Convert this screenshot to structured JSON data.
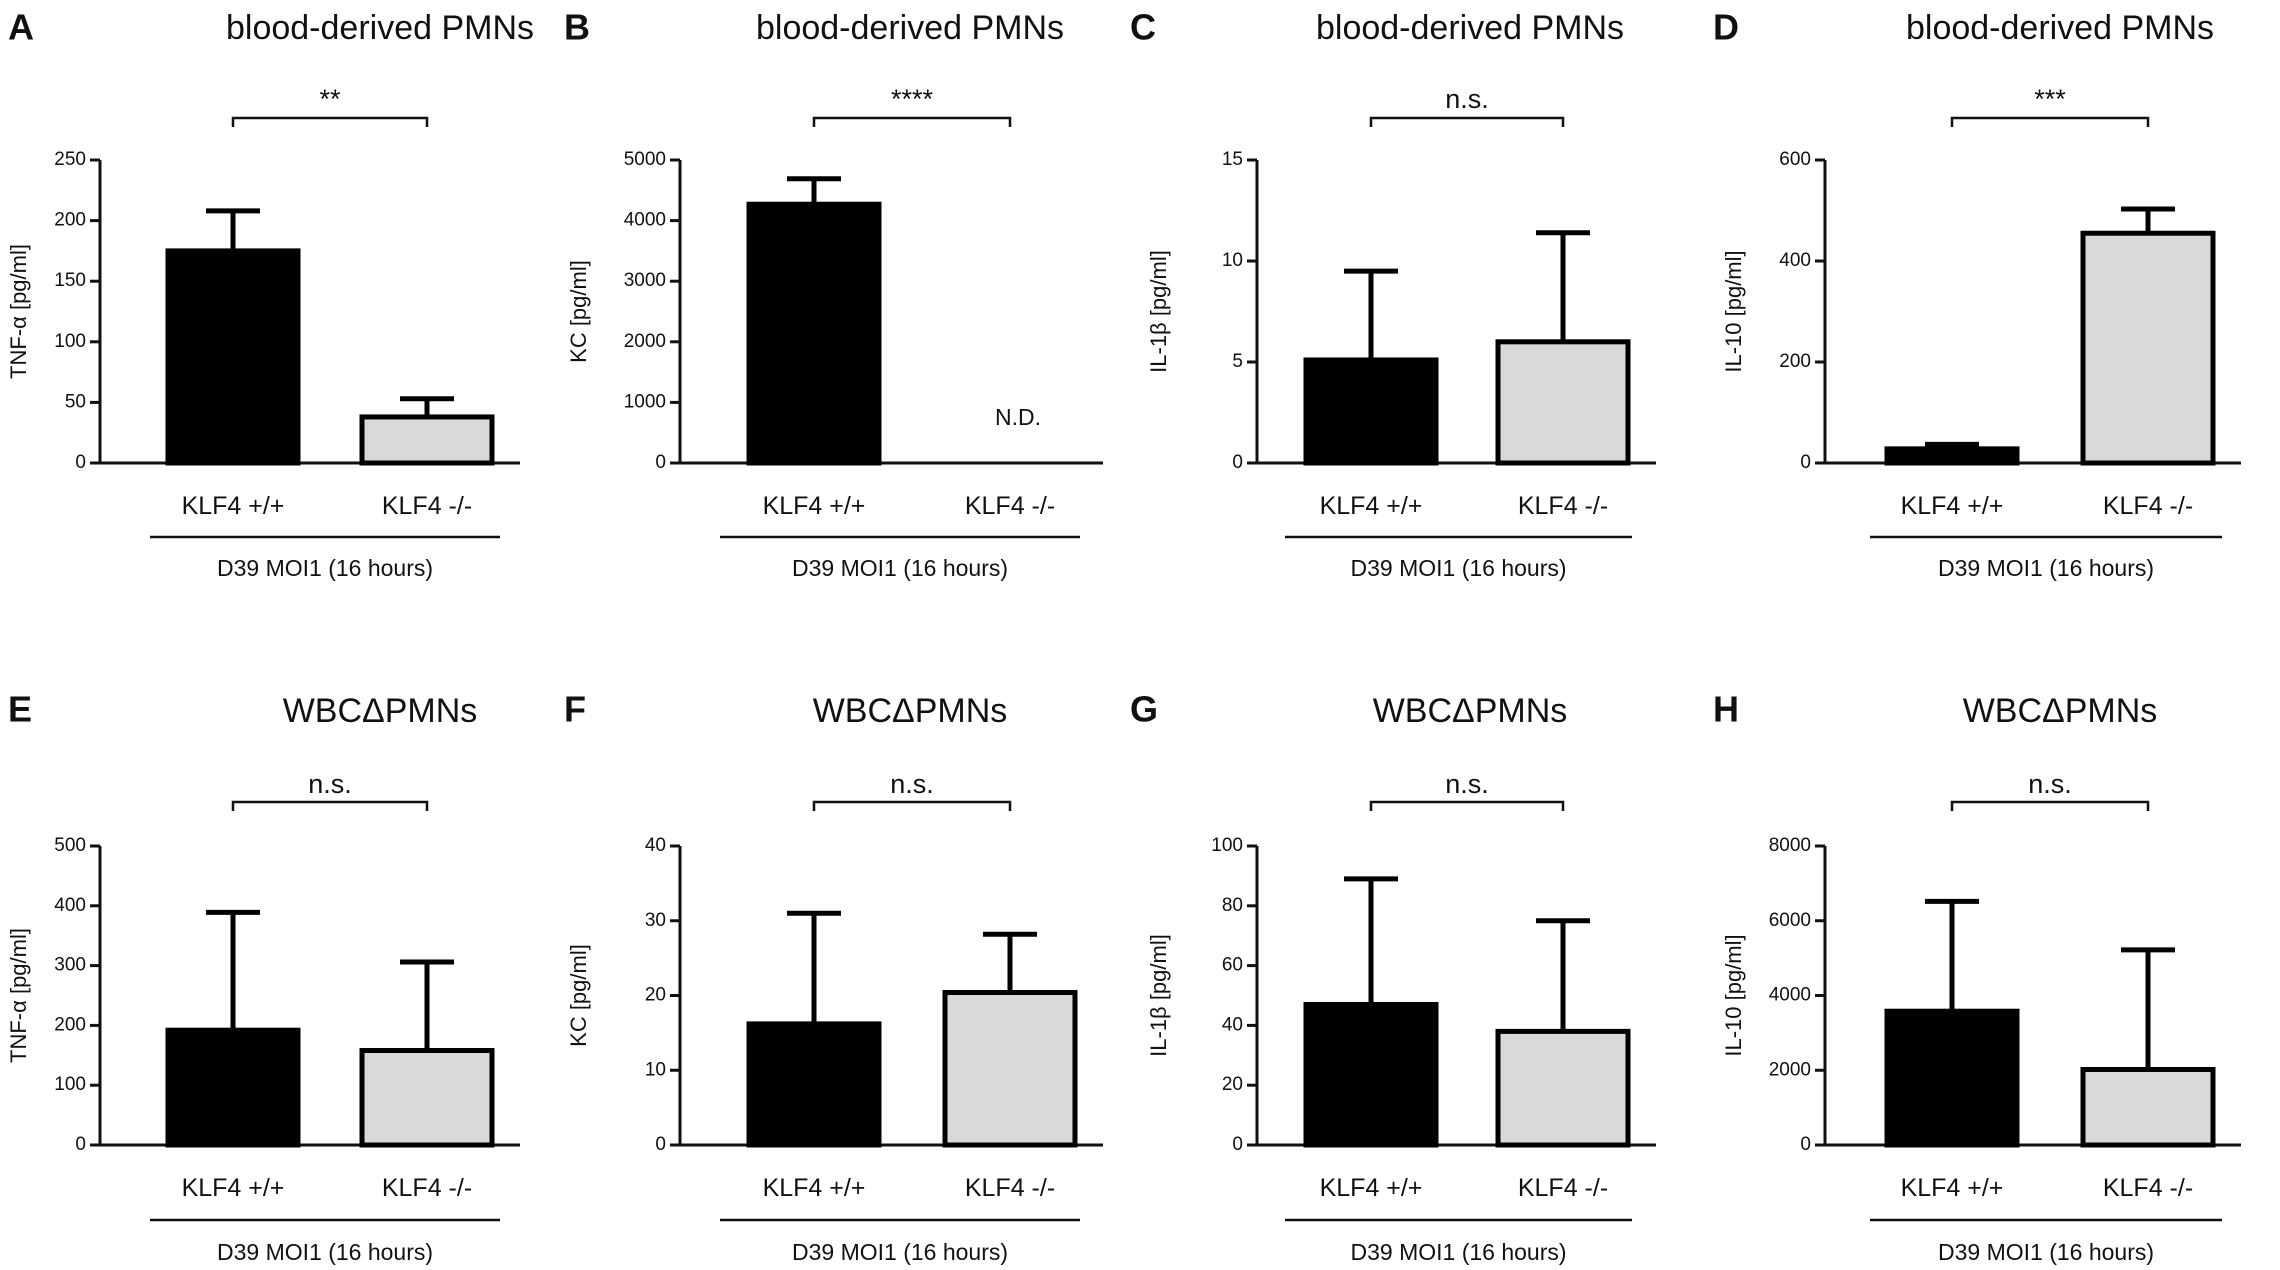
{
  "figure": {
    "group_label": "D39 MOI1 (16 hours)"
  },
  "chart_data": [
    {
      "panel": "A",
      "type": "bar",
      "title": "blood-derived PMNs",
      "ylabel": "TNF-α  [pg/ml]",
      "ylim": [
        0,
        250
      ],
      "yticks": [
        0,
        50,
        100,
        150,
        200,
        250
      ],
      "categories": [
        "KLF4 +/+",
        "KLF4 -/-"
      ],
      "values": [
        175,
        38
      ],
      "errors": [
        33,
        15
      ],
      "significance": "**",
      "annotation": null,
      "group_label": "D39 MOI1 (16 hours)"
    },
    {
      "panel": "B",
      "type": "bar",
      "title": "blood-derived PMNs",
      "ylabel": "KC [pg/ml]",
      "ylim": [
        0,
        5000
      ],
      "yticks": [
        0,
        1000,
        2000,
        3000,
        4000,
        5000
      ],
      "categories": [
        "KLF4 +/+",
        "KLF4 -/-"
      ],
      "values": [
        4270,
        null
      ],
      "errors": [
        420,
        null
      ],
      "significance": "****",
      "annotation": "N.D.",
      "group_label": "D39 MOI1 (16 hours)"
    },
    {
      "panel": "C",
      "type": "bar",
      "title": "blood-derived PMNs",
      "ylabel": "IL-1β [pg/ml]",
      "ylim": [
        0,
        15
      ],
      "yticks": [
        0,
        5,
        10,
        15
      ],
      "categories": [
        "KLF4 +/+",
        "KLF4 -/-"
      ],
      "values": [
        5.1,
        6.0
      ],
      "errors": [
        4.4,
        5.4
      ],
      "significance": "n.s.",
      "annotation": null,
      "group_label": "D39 MOI1 (16 hours)"
    },
    {
      "panel": "D",
      "type": "bar",
      "title": "blood-derived PMNs",
      "ylabel": "IL-10 [pg/ml]",
      "ylim": [
        0,
        600
      ],
      "yticks": [
        0,
        200,
        400,
        600
      ],
      "categories": [
        "KLF4 +/+",
        "KLF4 -/-"
      ],
      "values": [
        28,
        455
      ],
      "errors": [
        9,
        48
      ],
      "significance": "***",
      "annotation": null,
      "group_label": "D39 MOI1 (16 hours)"
    },
    {
      "panel": "E",
      "type": "bar",
      "title": "WBCΔPMNs",
      "ylabel": "TNF-α  [pg/ml]",
      "ylim": [
        0,
        500
      ],
      "yticks": [
        0,
        100,
        200,
        300,
        400,
        500
      ],
      "categories": [
        "KLF4 +/+",
        "KLF4 -/-"
      ],
      "values": [
        192,
        158
      ],
      "errors": [
        197,
        148
      ],
      "significance": "n.s.",
      "annotation": null,
      "group_label": "D39 MOI1 (16 hours)"
    },
    {
      "panel": "F",
      "type": "bar",
      "title": "WBCΔPMNs",
      "ylabel": "KC [pg/ml]",
      "ylim": [
        0,
        40
      ],
      "yticks": [
        0,
        10,
        20,
        30,
        40
      ],
      "categories": [
        "KLF4 +/+",
        "KLF4 -/-"
      ],
      "values": [
        16.2,
        20.4
      ],
      "errors": [
        14.8,
        7.8
      ],
      "significance": "n.s.",
      "annotation": null,
      "group_label": "D39 MOI1 (16 hours)"
    },
    {
      "panel": "G",
      "type": "bar",
      "title": "WBCΔPMNs",
      "ylabel": "IL-1β [pg/ml]",
      "ylim": [
        0,
        100
      ],
      "yticks": [
        0,
        20,
        40,
        60,
        80,
        100
      ],
      "categories": [
        "KLF4 +/+",
        "KLF4 -/-"
      ],
      "values": [
        47,
        38
      ],
      "errors": [
        42,
        37
      ],
      "significance": "n.s.",
      "annotation": null,
      "group_label": "D39 MOI1 (16 hours)"
    },
    {
      "panel": "H",
      "type": "bar",
      "title": "WBCΔPMNs",
      "ylabel": "IL-10 [pg/ml]",
      "ylim": [
        0,
        8000
      ],
      "yticks": [
        0,
        2000,
        4000,
        6000,
        8000
      ],
      "categories": [
        "KLF4 +/+",
        "KLF4 -/-"
      ],
      "values": [
        3580,
        2020
      ],
      "errors": [
        2940,
        3200
      ],
      "significance": "n.s.",
      "annotation": null,
      "group_label": "D39 MOI1 (16 hours)"
    }
  ]
}
